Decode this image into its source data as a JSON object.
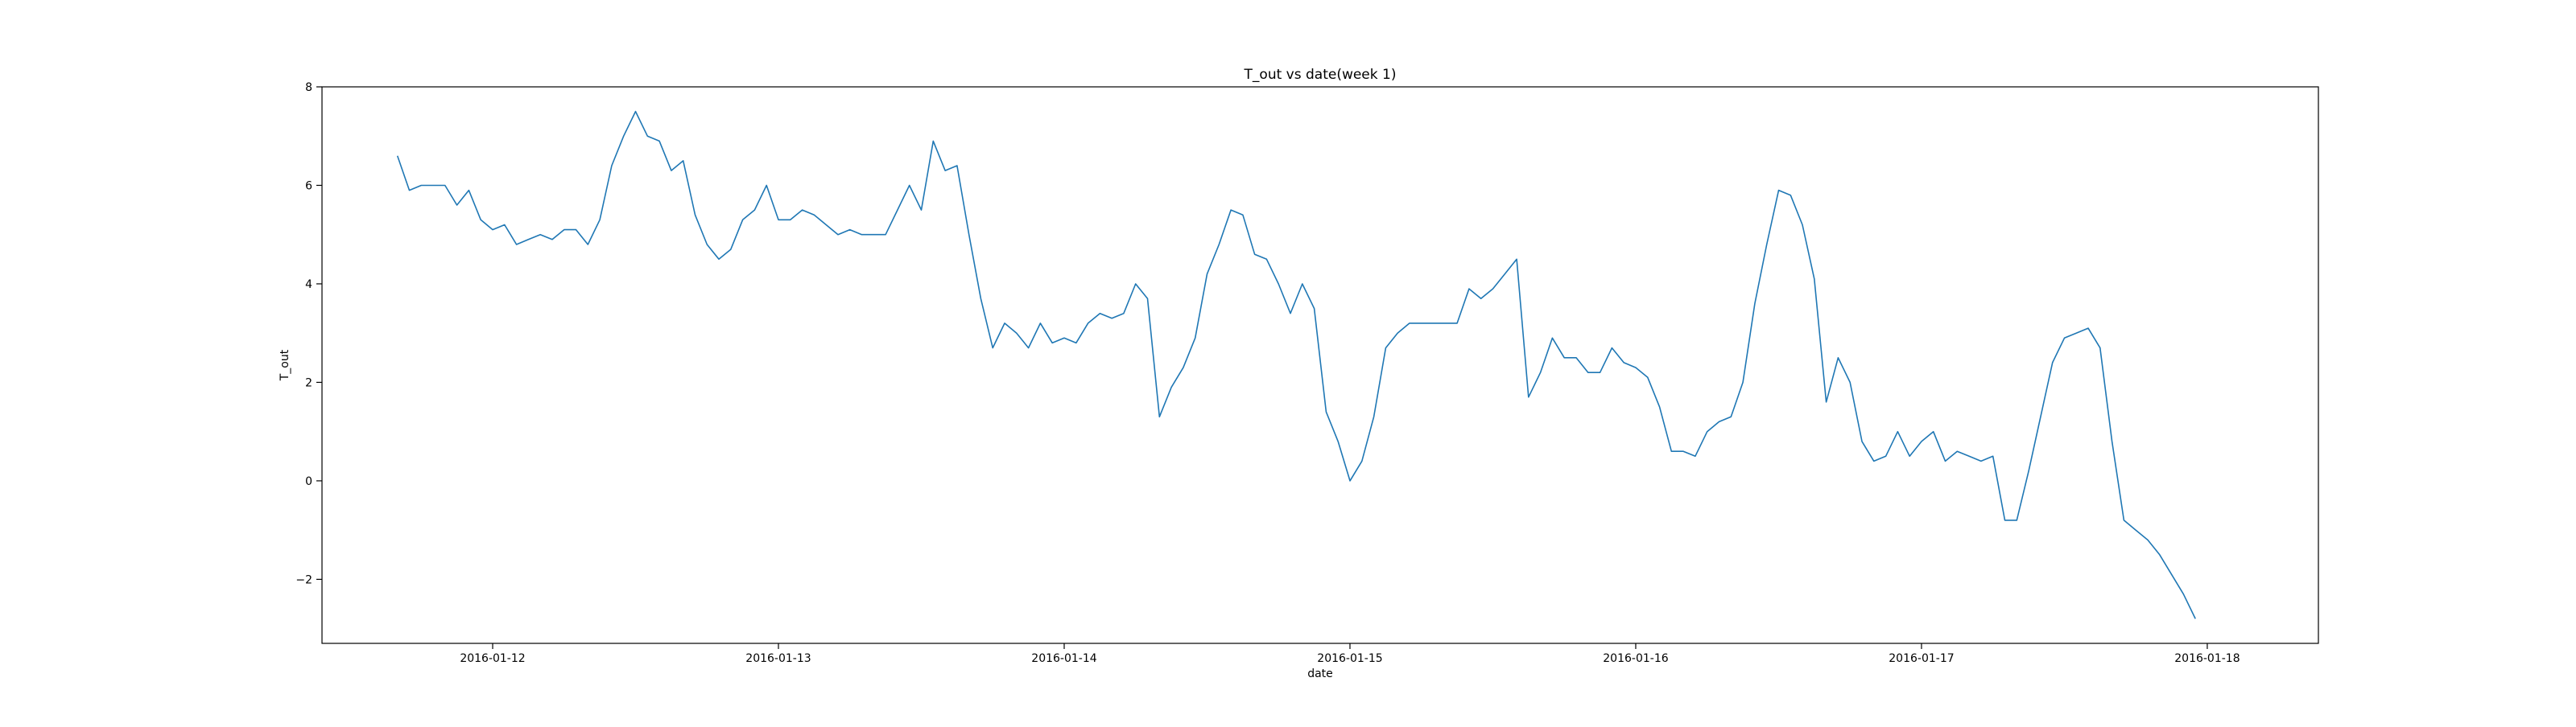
{
  "chart_data": {
    "type": "line",
    "title": "T_out vs date(week 1)",
    "xlabel": "date",
    "ylabel": "T_out",
    "x_start": "2016-01-11 16:00",
    "x_step_minutes": 60,
    "x_ticks": [
      "2016-01-12",
      "2016-01-13",
      "2016-01-14",
      "2016-01-15",
      "2016-01-16",
      "2016-01-17",
      "2016-01-18"
    ],
    "y_ticks": [
      -2,
      0,
      2,
      4,
      6,
      8
    ],
    "xlim": [
      "2016-01-11 09:40",
      "2016-01-18 09:20"
    ],
    "ylim": [
      -3.3,
      8
    ],
    "grid": false,
    "series": [
      {
        "color": "#1f77b4",
        "values": [
          6.6,
          5.9,
          6.0,
          6.0,
          6.0,
          5.6,
          5.9,
          5.3,
          5.1,
          5.2,
          4.8,
          4.9,
          5.0,
          4.9,
          5.1,
          5.1,
          4.8,
          5.3,
          6.4,
          7.0,
          7.5,
          7.0,
          6.9,
          6.3,
          6.5,
          5.4,
          4.8,
          4.5,
          4.7,
          5.3,
          5.5,
          6.0,
          5.3,
          5.3,
          5.5,
          5.4,
          5.2,
          5.0,
          5.1,
          5.0,
          5.0,
          5.0,
          5.5,
          6.0,
          5.5,
          6.9,
          6.3,
          6.4,
          5.0,
          3.7,
          2.7,
          3.2,
          3.0,
          2.7,
          3.2,
          2.8,
          2.9,
          2.8,
          3.2,
          3.4,
          3.3,
          3.4,
          4.0,
          3.7,
          1.3,
          1.9,
          2.3,
          2.9,
          4.2,
          4.8,
          5.5,
          5.4,
          4.6,
          4.5,
          4.0,
          3.4,
          4.0,
          3.5,
          1.4,
          0.8,
          0.0,
          0.4,
          1.3,
          2.7,
          3.0,
          3.2,
          3.2,
          3.2,
          3.2,
          3.2,
          3.9,
          3.7,
          3.9,
          4.2,
          4.5,
          1.7,
          2.2,
          2.9,
          2.5,
          2.5,
          2.2,
          2.2,
          2.7,
          2.4,
          2.3,
          2.1,
          1.5,
          0.6,
          0.6,
          0.5,
          1.0,
          1.2,
          1.3,
          2.0,
          3.6,
          4.8,
          5.9,
          5.8,
          5.2,
          4.1,
          1.6,
          2.5,
          2.0,
          0.8,
          0.4,
          0.5,
          1.0,
          0.5,
          0.8,
          1.0,
          0.4,
          0.6,
          0.5,
          0.4,
          0.5,
          -0.8,
          -0.8,
          0.2,
          1.3,
          2.4,
          2.9,
          3.0,
          3.1,
          2.7,
          0.8,
          -0.8,
          -1.0,
          -1.2,
          -1.5,
          -1.9,
          -2.3,
          -2.8
        ]
      }
    ]
  }
}
